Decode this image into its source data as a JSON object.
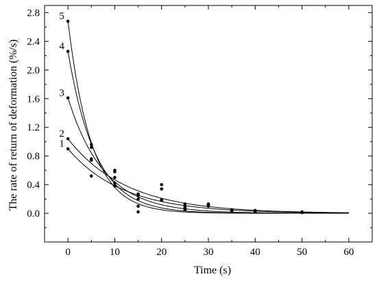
{
  "chart_data": {
    "type": "scatter",
    "title": "",
    "xlabel": "Time (s)",
    "ylabel": "The rate of return of deformation (%/s)",
    "xlim": [
      -5,
      65
    ],
    "ylim": [
      -0.4,
      2.9
    ],
    "x_ticks": [
      0,
      10,
      20,
      30,
      40,
      50,
      60
    ],
    "y_ticks": [
      0.0,
      0.4,
      0.8,
      1.2,
      1.6,
      2.0,
      2.4,
      2.8
    ],
    "x_tick_labels": [
      "0",
      "10",
      "20",
      "30",
      "40",
      "50",
      "60"
    ],
    "y_tick_labels": [
      "0.0",
      "0.4",
      "0.8",
      "1.2",
      "1.6",
      "2.0",
      "2.4",
      "2.8"
    ],
    "grid": false,
    "fit_x_range": [
      0,
      60
    ],
    "series": [
      {
        "name": "1",
        "points": [
          [
            0,
            0.9
          ],
          [
            5,
            0.52
          ],
          [
            10,
            0.38
          ],
          [
            15,
            0.25
          ],
          [
            20,
            0.4
          ],
          [
            25,
            0.13
          ],
          [
            30,
            0.1
          ],
          [
            35,
            0.05
          ],
          [
            40,
            0.04
          ],
          [
            50,
            0.02
          ]
        ],
        "fit": {
          "y0": 0.9,
          "decay": 0.085
        }
      },
      {
        "name": "2",
        "points": [
          [
            0,
            1.04
          ],
          [
            5,
            0.76
          ],
          [
            10,
            0.58
          ],
          [
            15,
            0.27
          ],
          [
            20,
            0.34
          ],
          [
            25,
            0.1
          ],
          [
            30,
            0.13
          ],
          [
            35,
            0.04
          ],
          [
            40,
            0.03
          ]
        ],
        "fit": {
          "y0": 1.04,
          "decay": 0.08
        }
      },
      {
        "name": "3",
        "points": [
          [
            0,
            1.61
          ],
          [
            5,
            0.92
          ],
          [
            10,
            0.6
          ],
          [
            15,
            0.2
          ],
          [
            20,
            0.18
          ],
          [
            25,
            0.08
          ],
          [
            30,
            0.12
          ],
          [
            35,
            0.03
          ]
        ],
        "fit": {
          "y0": 1.61,
          "decay": 0.13
        }
      },
      {
        "name": "4",
        "points": [
          [
            0,
            2.26
          ],
          [
            5,
            0.96
          ],
          [
            10,
            0.5
          ],
          [
            15,
            0.1
          ],
          [
            25,
            0.07
          ],
          [
            30,
            0.11
          ],
          [
            40,
            0.02
          ]
        ],
        "fit": {
          "y0": 2.26,
          "decay": 0.17
        }
      },
      {
        "name": "5",
        "points": [
          [
            0,
            2.68
          ],
          [
            5,
            0.74
          ],
          [
            10,
            0.42
          ],
          [
            15,
            0.02
          ],
          [
            20,
            0.19
          ],
          [
            25,
            0.05
          ],
          [
            30,
            0.12
          ],
          [
            50,
            0.01
          ]
        ],
        "fit": {
          "y0": 2.68,
          "decay": 0.2
        }
      }
    ]
  }
}
